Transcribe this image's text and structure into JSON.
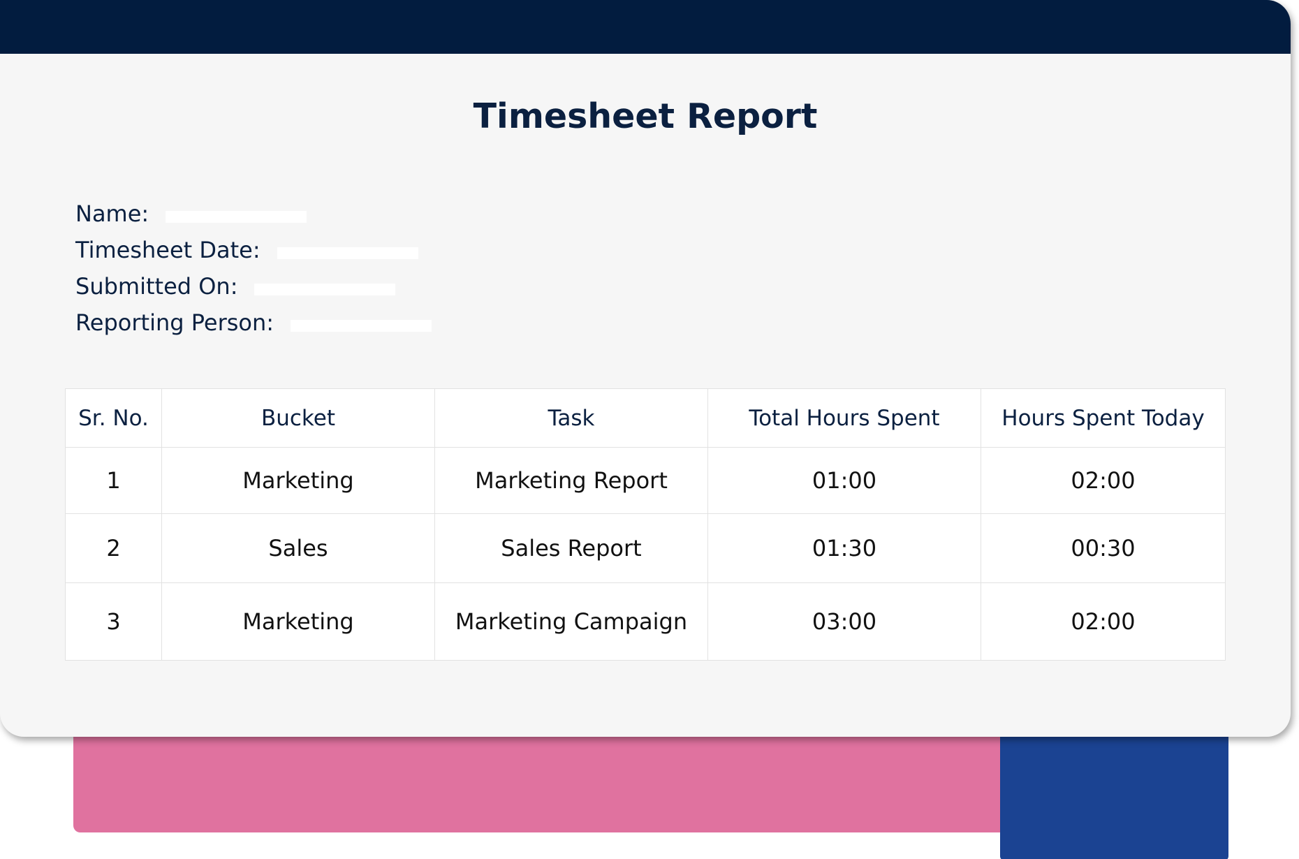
{
  "report": {
    "title": "Timesheet Report"
  },
  "fields": [
    {
      "label": "Name:",
      "value": ""
    },
    {
      "label": "Timesheet Date:",
      "value": ""
    },
    {
      "label": "Submitted On:",
      "value": ""
    },
    {
      "label": "Reporting Person:",
      "value": ""
    }
  ],
  "table": {
    "headers": [
      "Sr. No.",
      "Bucket",
      "Task",
      "Total Hours Spent",
      "Hours Spent Today"
    ],
    "rows": [
      [
        "1",
        "Marketing",
        "Marketing Report",
        "01:00",
        "02:00"
      ],
      [
        "2",
        "Sales",
        "Sales Report",
        "01:30",
        "00:30"
      ],
      [
        "3",
        "Marketing",
        "Marketing Campaign",
        "03:00",
        "02:00"
      ]
    ]
  },
  "colors": {
    "header_bar": "#021c3f",
    "title_text": "#0b2040",
    "accent_pink": "#e0729f",
    "accent_blue": "#1b4392"
  }
}
